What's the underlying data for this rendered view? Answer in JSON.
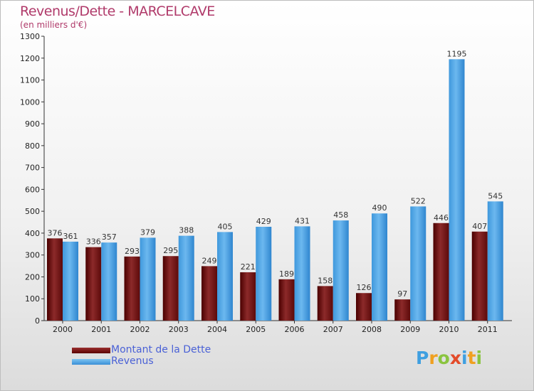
{
  "title": "Revenus/Dette - MARCELCAVE",
  "subtitle": "(en milliers d'€)",
  "chart_data": {
    "type": "bar",
    "title": "Revenus/Dette - MARCELCAVE",
    "subtitle": "(en milliers d'€)",
    "categories": [
      "2000",
      "2001",
      "2002",
      "2003",
      "2004",
      "2005",
      "2006",
      "2007",
      "2008",
      "2009",
      "2010",
      "2011"
    ],
    "series": [
      {
        "name": "Montant de la Dette",
        "color": "#7a1414",
        "values": [
          376,
          336,
          293,
          295,
          249,
          221,
          189,
          158,
          126,
          97,
          446,
          407
        ]
      },
      {
        "name": "Revenus",
        "color": "#4aa3e6",
        "values": [
          361,
          357,
          379,
          388,
          405,
          429,
          431,
          458,
          490,
          522,
          1195,
          545
        ]
      }
    ],
    "ylim": [
      0,
      1300
    ],
    "yticks": [
      0,
      100,
      200,
      300,
      400,
      500,
      600,
      700,
      800,
      900,
      1000,
      1100,
      1200,
      1300
    ],
    "grid": false,
    "legend_position": "bottom-left"
  },
  "legend": [
    {
      "label": "Montant de la Dette",
      "color": "#7a1414"
    },
    {
      "label": "Revenus",
      "color": "#4aa3e6"
    }
  ],
  "logo": {
    "letters": [
      "P",
      "r",
      "o",
      "x",
      "i",
      "t",
      "i"
    ],
    "colors": [
      "#3f9fe0",
      "#f0a020",
      "#8ac43f",
      "#e34b2a",
      "#3f9fe0",
      "#f0a020",
      "#8ac43f"
    ]
  }
}
